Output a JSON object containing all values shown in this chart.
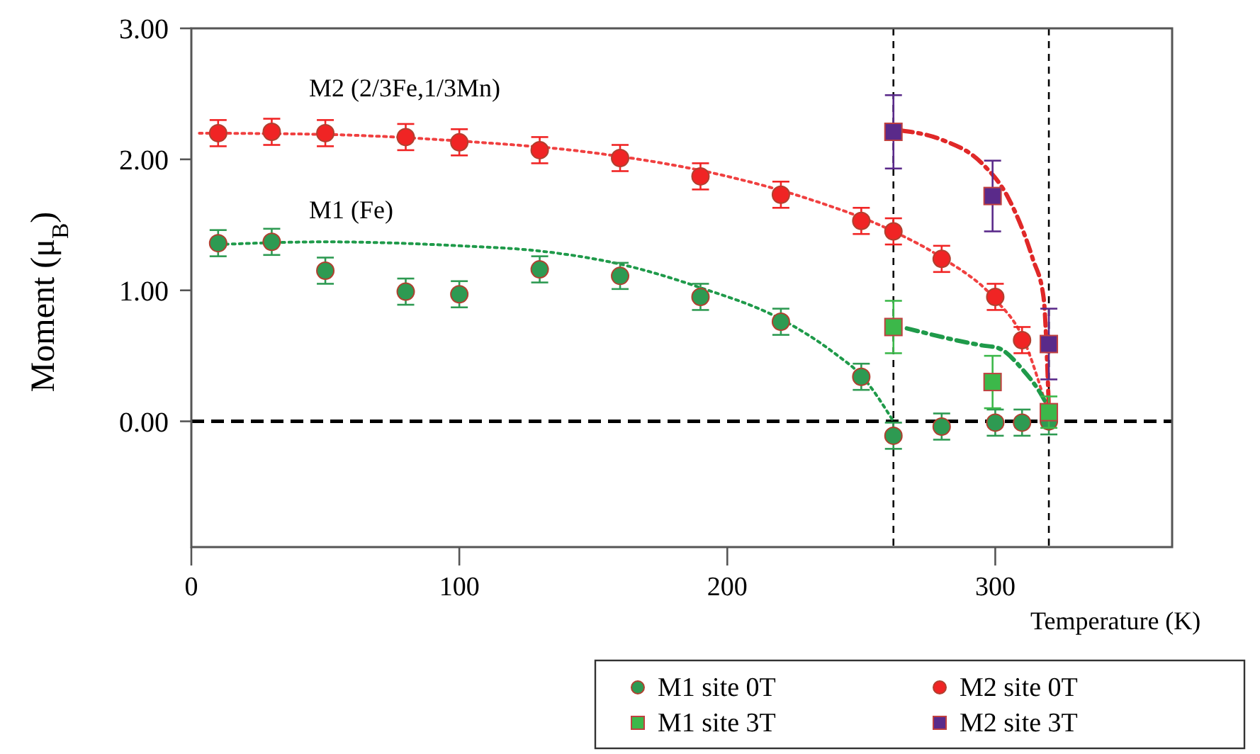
{
  "chart_data": {
    "type": "scatter",
    "xlabel": "Temperature (K)",
    "ylabel": "Moment   (μ$_{B}$)",
    "xlim": [
      0,
      366
    ],
    "ylim": [
      -0.96,
      3
    ],
    "xticks": [
      0,
      100,
      200,
      300
    ],
    "yticks": [
      {
        "value": 0,
        "label": "0.00"
      },
      {
        "value": 1,
        "label": "1.00"
      },
      {
        "value": 2,
        "label": "2.00"
      },
      {
        "value": 3,
        "label": "3.00"
      }
    ],
    "grid": false,
    "legend": "bottom right",
    "annotations": [
      "M2 (2/3Fe,1/3Mn)",
      "M1 (Fe)"
    ],
    "ref_lines": [
      {
        "axis": "y",
        "value": 0,
        "color": "#000000",
        "line_style": "dashed"
      },
      {
        "axis": "x",
        "value": 262,
        "color": "#000000",
        "line_style": "dashed"
      },
      {
        "axis": "x",
        "value": 320,
        "color": "#000000",
        "line_style": "dashed"
      }
    ],
    "series": [
      {
        "name": "M1 site  0T",
        "type": "scatter",
        "marker": "circle",
        "color": "#2e9a52",
        "x": [
          10,
          30,
          50,
          80,
          100,
          130,
          160,
          190,
          220,
          250,
          262,
          280,
          300,
          310,
          320
        ],
        "values": [
          1.36,
          1.37,
          1.15,
          0.99,
          0.97,
          1.16,
          1.11,
          0.95,
          0.76,
          0.34,
          -0.11,
          -0.04,
          -0.01,
          -0.01,
          0.0
        ],
        "errors": [
          0.1,
          0.1,
          0.1,
          0.1,
          0.1,
          0.1,
          0.1,
          0.1,
          0.1,
          0.1,
          0.1,
          0.1,
          0.1,
          0.1,
          0.1
        ]
      },
      {
        "name": "M2 site  0T",
        "type": "scatter",
        "marker": "circle",
        "color": "#f02424",
        "x": [
          10,
          30,
          50,
          80,
          100,
          130,
          160,
          190,
          220,
          250,
          262,
          280,
          300,
          310
        ],
        "values": [
          2.2,
          2.21,
          2.2,
          2.17,
          2.13,
          2.07,
          2.01,
          1.87,
          1.73,
          1.53,
          1.45,
          1.24,
          0.95,
          0.62
        ],
        "errors": [
          0.1,
          0.1,
          0.1,
          0.1,
          0.1,
          0.1,
          0.1,
          0.1,
          0.1,
          0.1,
          0.1,
          0.1,
          0.1,
          0.1
        ]
      },
      {
        "name": "M1 site  3T",
        "type": "scatter",
        "marker": "square",
        "color": "#3cb84a",
        "x": [
          262,
          299,
          320
        ],
        "values": [
          0.72,
          0.3,
          0.07
        ],
        "errors": [
          0.2,
          0.2,
          0.12
        ]
      },
      {
        "name": "M2 site  3T",
        "type": "scatter",
        "marker": "square",
        "color": "#5a2a8a",
        "x": [
          262,
          299,
          320
        ],
        "values": [
          2.21,
          1.72,
          0.59
        ],
        "errors": [
          0.28,
          0.27,
          0.27
        ]
      },
      {
        "type": "line",
        "color": "#f04040",
        "line_style": "dotted",
        "x": [
          3,
          50,
          100,
          150,
          200,
          230,
          262,
          280,
          300,
          310,
          320
        ],
        "values": [
          2.2,
          2.19,
          2.14,
          2.05,
          1.87,
          1.7,
          1.45,
          1.25,
          0.93,
          0.65,
          0.05
        ]
      },
      {
        "type": "line",
        "color": "#1f9a4a",
        "line_style": "dotted",
        "x": [
          10,
          50,
          100,
          130,
          160,
          190,
          220,
          240,
          250,
          262
        ],
        "values": [
          1.35,
          1.37,
          1.34,
          1.3,
          1.2,
          1.02,
          0.78,
          0.52,
          0.35,
          0.0
        ]
      },
      {
        "type": "line",
        "color": "#e02828",
        "line_style": "dashed",
        "x": [
          265,
          280,
          295,
          305,
          314,
          318,
          320
        ],
        "values": [
          2.22,
          2.15,
          1.97,
          1.7,
          1.24,
          0.95,
          0.1
        ]
      },
      {
        "type": "line",
        "color": "#1f9a4a",
        "line_style": "dashed",
        "x": [
          267,
          295,
          301,
          310,
          317,
          320
        ],
        "values": [
          0.71,
          0.58,
          0.56,
          0.4,
          0.21,
          0.1
        ]
      }
    ]
  }
}
